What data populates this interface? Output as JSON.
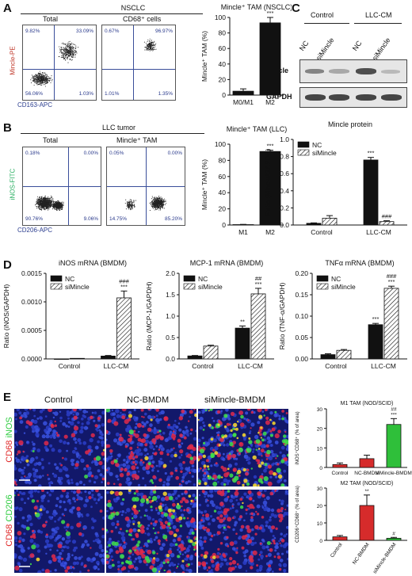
{
  "panels": {
    "A": "A",
    "B": "B",
    "C": "C",
    "D": "D",
    "E": "E"
  },
  "A": {
    "title": "NSCLC",
    "flow_titles": [
      "Total",
      "CD68⁺ cells"
    ],
    "flow_left_quadrants": [
      "9.82%",
      "33.09%",
      "56.06%",
      "1.03%"
    ],
    "flow_right_quadrants": [
      "0.67%",
      "96.97%",
      "1.01%",
      "1.35%"
    ],
    "ylabel": "Mincle-PE",
    "xlabel": "CD163-APC",
    "colors": {
      "ylabel": "#c0392b",
      "xlabel": "#2c3e8f"
    }
  },
  "B": {
    "title": "LLC tumor",
    "flow_titles": [
      "Total",
      "Mincle⁺ TAM"
    ],
    "flow_left_quadrants": [
      "0.18%",
      "0.00%",
      "90.76%",
      "9.06%"
    ],
    "flow_right_quadrants": [
      "0.05%",
      "0.00%",
      "14.75%",
      "85.20%"
    ],
    "ylabel": "iNOS-FITC",
    "xlabel": "CD206-APC",
    "colors": {
      "ylabel": "#27ae60",
      "xlabel": "#2c3e8f"
    }
  },
  "C": {
    "header_left": "Control",
    "header_right": "LLC-CM",
    "lanes": [
      "NC",
      "siMincle",
      "NC",
      "siMincle"
    ],
    "row_labels": [
      "Mincle",
      "GAPDH"
    ]
  },
  "E": {
    "column_headers": [
      "Control",
      "NC-BMDM",
      "siMincle-BMDM"
    ],
    "row1_label_a": "CD68",
    "row1_label_b": "iNOS",
    "row2_label_a": "CD68",
    "row2_label_b": "CD206",
    "colors": {
      "red": "#e02a2a",
      "green": "#2ecc40",
      "blue": "#2c3ec8"
    }
  },
  "chart_data": [
    {
      "id": "A-bar",
      "type": "bar",
      "title": "Mincle⁺ TAM (NSCLC)",
      "ylabel": "Mincle⁺ TAM (%)",
      "categories": [
        "M0/M1",
        "M2"
      ],
      "values": [
        5,
        93
      ],
      "errors": [
        3,
        7
      ],
      "ylim": [
        0,
        100
      ],
      "yticks": [
        "0",
        "20",
        "40",
        "60",
        "80",
        "100"
      ],
      "annotations": [
        "",
        "***"
      ]
    },
    {
      "id": "B-bar",
      "type": "bar",
      "title": "Mincle⁺ TAM (LLC)",
      "ylabel": "Mincle⁺ TAM (%)",
      "categories": [
        "M1",
        "M2"
      ],
      "values": [
        0.5,
        91
      ],
      "errors": [
        0.3,
        1.5
      ],
      "ylim": [
        0,
        100
      ],
      "yticks": [
        "0",
        "20",
        "40",
        "60",
        "80",
        "100"
      ],
      "annotations": [
        "",
        "***"
      ]
    },
    {
      "id": "C-bar",
      "type": "bar",
      "title": "Mincle protein",
      "ylabel": "Ratio (Mincle/GAPDH)",
      "categories": [
        "Control",
        "LLC-CM"
      ],
      "series": [
        {
          "name": "NC",
          "values": [
            0.02,
            0.76
          ],
          "errors": [
            0.005,
            0.03
          ],
          "annotations": [
            "",
            "***"
          ]
        },
        {
          "name": "siMincle",
          "values": [
            0.08,
            0.04
          ],
          "errors": [
            0.03,
            0.01
          ],
          "annotations": [
            "",
            "###"
          ]
        }
      ],
      "ylim": [
        0,
        1.0
      ],
      "yticks": [
        "0.0",
        "0.2",
        "0.4",
        "0.6",
        "0.8",
        "1.0"
      ],
      "legend": "top-left"
    },
    {
      "id": "D1-bar",
      "type": "bar",
      "title": "iNOS mRNA (BMDM)",
      "ylabel": "Ratio (iNOS/GAPDH)",
      "categories": [
        "Control",
        "LLC-CM"
      ],
      "series": [
        {
          "name": "NC",
          "values": [
            0.0,
            5e-05
          ],
          "errors": [
            0,
            1e-05
          ],
          "annotations": [
            "",
            ""
          ]
        },
        {
          "name": "siMincle",
          "values": [
            1e-05,
            0.00107
          ],
          "errors": [
            0,
            0.00012
          ],
          "annotations": [
            "",
            "###\n***"
          ]
        }
      ],
      "ylim": [
        0,
        0.0015
      ],
      "yticks": [
        "0.0000",
        "0.0005",
        "0.0010",
        "0.0015"
      ],
      "legend": "top-left"
    },
    {
      "id": "D2-bar",
      "type": "bar",
      "title": "MCP-1 mRNA (BMDM)",
      "ylabel": "Ratio (MCP-1/GAPDH)",
      "categories": [
        "Control",
        "LLC-CM"
      ],
      "series": [
        {
          "name": "NC",
          "values": [
            0.07,
            0.72
          ],
          "errors": [
            0.01,
            0.05
          ],
          "annotations": [
            "",
            "**"
          ]
        },
        {
          "name": "siMincle",
          "values": [
            0.3,
            1.52
          ],
          "errors": [
            0.02,
            0.13
          ],
          "annotations": [
            "",
            "##\n***"
          ]
        }
      ],
      "ylim": [
        0,
        2.0
      ],
      "yticks": [
        "0.0",
        "0.5",
        "1.0",
        "1.5",
        "2.0"
      ],
      "legend": "top-left"
    },
    {
      "id": "D3-bar",
      "type": "bar",
      "title": "TNFα mRNA (BMDM)",
      "ylabel": "Ratio (TNF-α/GAPDH)",
      "categories": [
        "Control",
        "LLC-CM"
      ],
      "series": [
        {
          "name": "NC",
          "values": [
            0.01,
            0.08
          ],
          "errors": [
            0.002,
            0.003
          ],
          "annotations": [
            "",
            "***"
          ]
        },
        {
          "name": "siMincle",
          "values": [
            0.02,
            0.165
          ],
          "errors": [
            0.002,
            0.005
          ],
          "annotations": [
            "",
            "###\n***"
          ]
        }
      ],
      "ylim": [
        0,
        0.2
      ],
      "yticks": [
        "0.00",
        "0.05",
        "0.10",
        "0.15",
        "0.20"
      ],
      "legend": "top-left"
    },
    {
      "id": "E1-bar",
      "type": "bar",
      "title": "M1 TAM (NOD/SCID)",
      "ylabel": "iNOS⁺CD68⁺ (% of area)",
      "categories": [
        "Control",
        "NC-BMDM",
        "siMincle-BMDM"
      ],
      "values": [
        1.5,
        4.5,
        22
      ],
      "errors": [
        0.8,
        1.8,
        3
      ],
      "colors": [
        "#d62b2b",
        "#d62b2b",
        "#2fbf3a"
      ],
      "ylim": [
        0,
        30
      ],
      "yticks": [
        "0",
        "10",
        "20",
        "30"
      ],
      "annotations": [
        "",
        "",
        "##\n***"
      ]
    },
    {
      "id": "E2-bar",
      "type": "bar",
      "title": "M2 TAM (NOD/SCID)",
      "ylabel": "CD206⁺CD68⁺ (% of area)",
      "categories": [
        "Control",
        "NC-BMDM",
        "siMincle-BMDM"
      ],
      "values": [
        2,
        20,
        1.2
      ],
      "errors": [
        0.8,
        6,
        0.5
      ],
      "colors": [
        "#d62b2b",
        "#d62b2b",
        "#2fbf3a"
      ],
      "ylim": [
        0,
        30
      ],
      "yticks": [
        "0",
        "10",
        "20",
        "30"
      ],
      "annotations": [
        "",
        "**",
        "#"
      ]
    }
  ]
}
